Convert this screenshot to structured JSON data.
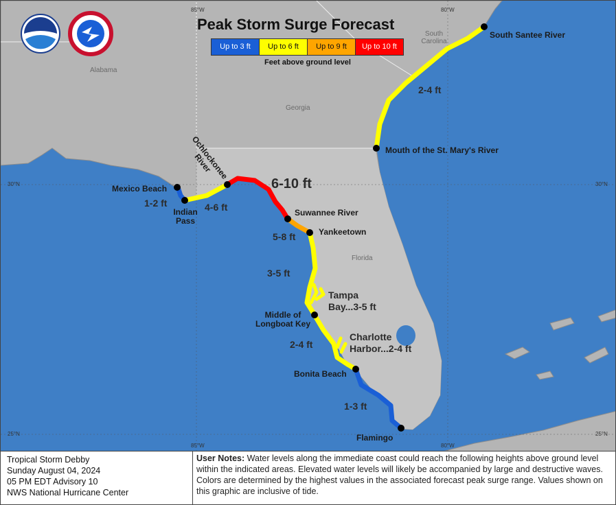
{
  "map": {
    "title": "Peak Storm Surge Forecast",
    "legend": {
      "items": [
        {
          "label": "Up to 3 ft",
          "color": "#1a5fd6"
        },
        {
          "label": "Up to 6 ft",
          "color": "#ffff00"
        },
        {
          "label": "Up to 9 ft",
          "color": "#ffa500"
        },
        {
          "label": "Up to 10 ft",
          "color": "#ff0000"
        }
      ],
      "caption": "Feet above ground level"
    },
    "graticule": {
      "longitudes": [
        "85°W",
        "80°W"
      ],
      "latitudes": [
        "30°N",
        "25°N"
      ]
    },
    "regions": [
      "Alabama",
      "Georgia",
      "South Carolina",
      "Florida"
    ],
    "locations": [
      "South Santee River",
      "Mouth of the St. Mary's River",
      "Mexico Beach",
      "Indian Pass",
      "Suwannee River",
      "Yankeetown",
      "Middle of Longboat Key",
      "Bonita Beach",
      "Flamingo"
    ],
    "river_label": "Ochlockonee River",
    "surge_labels": [
      "2-4 ft",
      "6-10 ft",
      "4-6 ft",
      "1-2 ft",
      "5-8 ft",
      "3-5 ft",
      "Tampa Bay...3-5 ft",
      "2-4 ft",
      "Charlotte Harbor...2-4 ft",
      "1-3 ft"
    ]
  },
  "footer": {
    "storm_info": [
      "Tropical Storm Debby",
      "Sunday August 04, 2024",
      "05 PM EDT Advisory 10",
      "NWS National Hurricane Center"
    ],
    "notes_heading": "User Notes:",
    "notes": "Water levels along the immediate coast could reach the following heights above ground level within the indicated areas. Elevated water levels will likely be accompanied by large and destructive waves. Colors are determined by the highest values in the associated forecast peak surge range. Values shown on this graphic are inclusive of tide."
  }
}
